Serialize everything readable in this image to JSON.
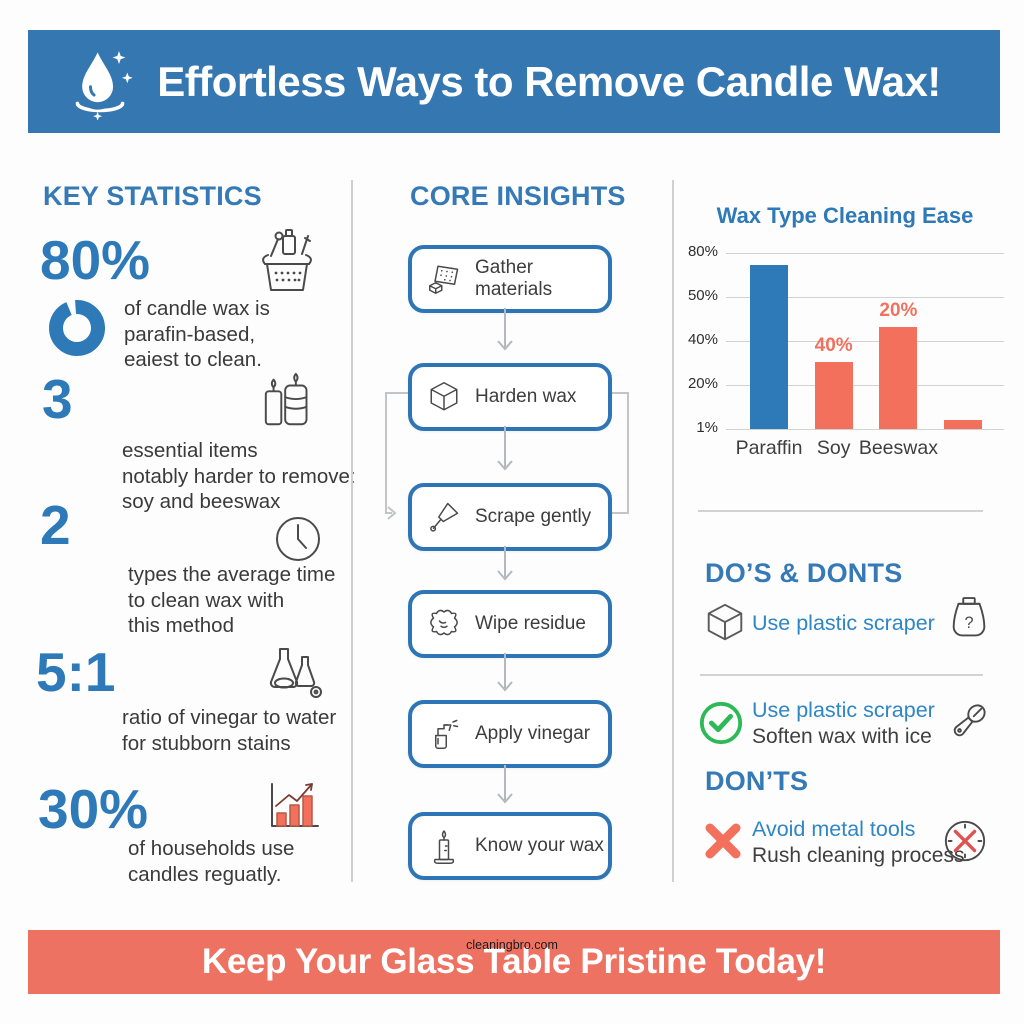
{
  "header": {
    "title": "Effortless Ways to Remove Candle Wax!"
  },
  "left": {
    "heading": "KEY STATISTICS",
    "stats": [
      {
        "value": "80%",
        "desc": "of candle wax is\nparafin-based,\neaiest to clean.",
        "icon": "basket-icon"
      },
      {
        "value": "3",
        "desc": "essential items\nnotably harder to remove:\nsoy and beeswax",
        "icon": "candles-icon"
      },
      {
        "value": "2",
        "desc": "types the average time\nto clean wax with\nthis method",
        "icon": "clock-icon"
      },
      {
        "value": "5:1",
        "desc": "ratio of vinegar to water\nfor stubborn stains",
        "icon": "flasks-icon"
      },
      {
        "value": "30%",
        "desc": "of households use\ncandles reguatly.",
        "icon": "bar-chart-icon"
      }
    ]
  },
  "middle": {
    "heading": "CORE INSIGHTS",
    "steps": [
      {
        "label": "Gather materials",
        "icon": "sponge-icon"
      },
      {
        "label": "Harden wax",
        "icon": "ice-cube-icon"
      },
      {
        "label": "Scrape gently",
        "icon": "scraper-icon"
      },
      {
        "label": "Wipe residue",
        "icon": "cloth-icon"
      },
      {
        "label": "Apply vinegar",
        "icon": "spray-bottle-icon"
      },
      {
        "label": "Know your wax",
        "icon": "candle-icon"
      }
    ]
  },
  "right": {
    "dos_heading": "DO’S & DONTS",
    "dos": [
      {
        "line1": "Use plastic scraper",
        "line2": "",
        "left_icon": "ice-cube-icon",
        "right_icon": "ice-pack-icon"
      },
      {
        "line1": "Use plastic scraper",
        "line2": "Soften wax with ice",
        "left_icon": "check-circle-icon",
        "right_icon": "scraper-tool-icon"
      }
    ],
    "donts_heading": "DON’TS",
    "donts": [
      {
        "line1": "Avoid metal tools",
        "line2": "Rush cleaning process",
        "left_icon": "x-mark-icon",
        "right_icon": "no-circle-icon"
      }
    ]
  },
  "chart_data": {
    "type": "bar",
    "title": "Wax Type Cleaning Ease",
    "categories": [
      "Paraffin",
      "Soy",
      "Beeswax",
      ""
    ],
    "y_tick_labels": [
      "80%",
      "50%",
      "40%",
      "20%",
      "1%"
    ],
    "bars": [
      {
        "category": "Paraffin",
        "height_pct_of_axis": 93,
        "color": "#2e79b8",
        "label": ""
      },
      {
        "category": "Soy",
        "height_pct_of_axis": 38,
        "color": "#f2705c",
        "label": "40%"
      },
      {
        "category": "Beeswax",
        "height_pct_of_axis": 58,
        "color": "#f2705c",
        "label": "20%"
      },
      {
        "category": "",
        "height_pct_of_axis": 5,
        "color": "#f2705c",
        "label": ""
      }
    ],
    "ylabel": "",
    "xlabel": "",
    "grid": true,
    "legend": false
  },
  "footer": {
    "title": "Keep Your Glass Table Pristine Today!",
    "watermark": "cleaningbro.com"
  },
  "colors": {
    "header_bg": "#3577b1",
    "footer_bg": "#ee7261",
    "accent_blue": "#2e79b8",
    "accent_coral": "#f2705c",
    "check_green": "#2eb857",
    "text_dark": "#3a3a3a"
  }
}
